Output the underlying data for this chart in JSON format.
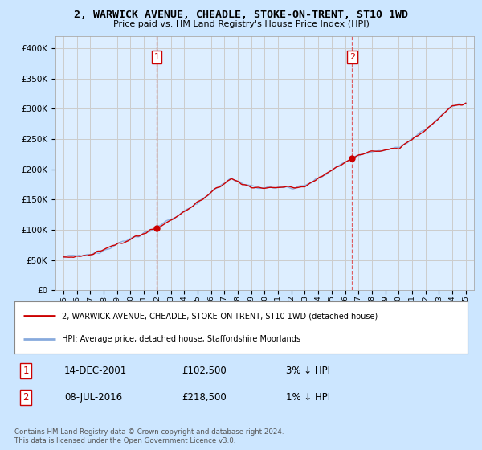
{
  "title": "2, WARWICK AVENUE, CHEADLE, STOKE-ON-TRENT, ST10 1WD",
  "subtitle": "Price paid vs. HM Land Registry's House Price Index (HPI)",
  "bg_color": "#cce6ff",
  "plot_bg_color": "#ddeeff",
  "ylim": [
    0,
    420000
  ],
  "yticks": [
    0,
    50000,
    100000,
    150000,
    200000,
    250000,
    300000,
    350000,
    400000
  ],
  "ytick_labels": [
    "£0",
    "£50K",
    "£100K",
    "£150K",
    "£200K",
    "£250K",
    "£300K",
    "£350K",
    "£400K"
  ],
  "sale1_date": 2001.96,
  "sale1_price": 102500,
  "sale2_date": 2016.52,
  "sale2_price": 218500,
  "legend_line1": "2, WARWICK AVENUE, CHEADLE, STOKE-ON-TRENT, ST10 1WD (detached house)",
  "legend_line2": "HPI: Average price, detached house, Staffordshire Moorlands",
  "table_row1": [
    "1",
    "14-DEC-2001",
    "£102,500",
    "3% ↓ HPI"
  ],
  "table_row2": [
    "2",
    "08-JUL-2016",
    "£218,500",
    "1% ↓ HPI"
  ],
  "footnote": "Contains HM Land Registry data © Crown copyright and database right 2024.\nThis data is licensed under the Open Government Licence v3.0.",
  "hpi_color": "#88aadd",
  "price_color": "#cc0000",
  "dashed_color": "#dd4444"
}
